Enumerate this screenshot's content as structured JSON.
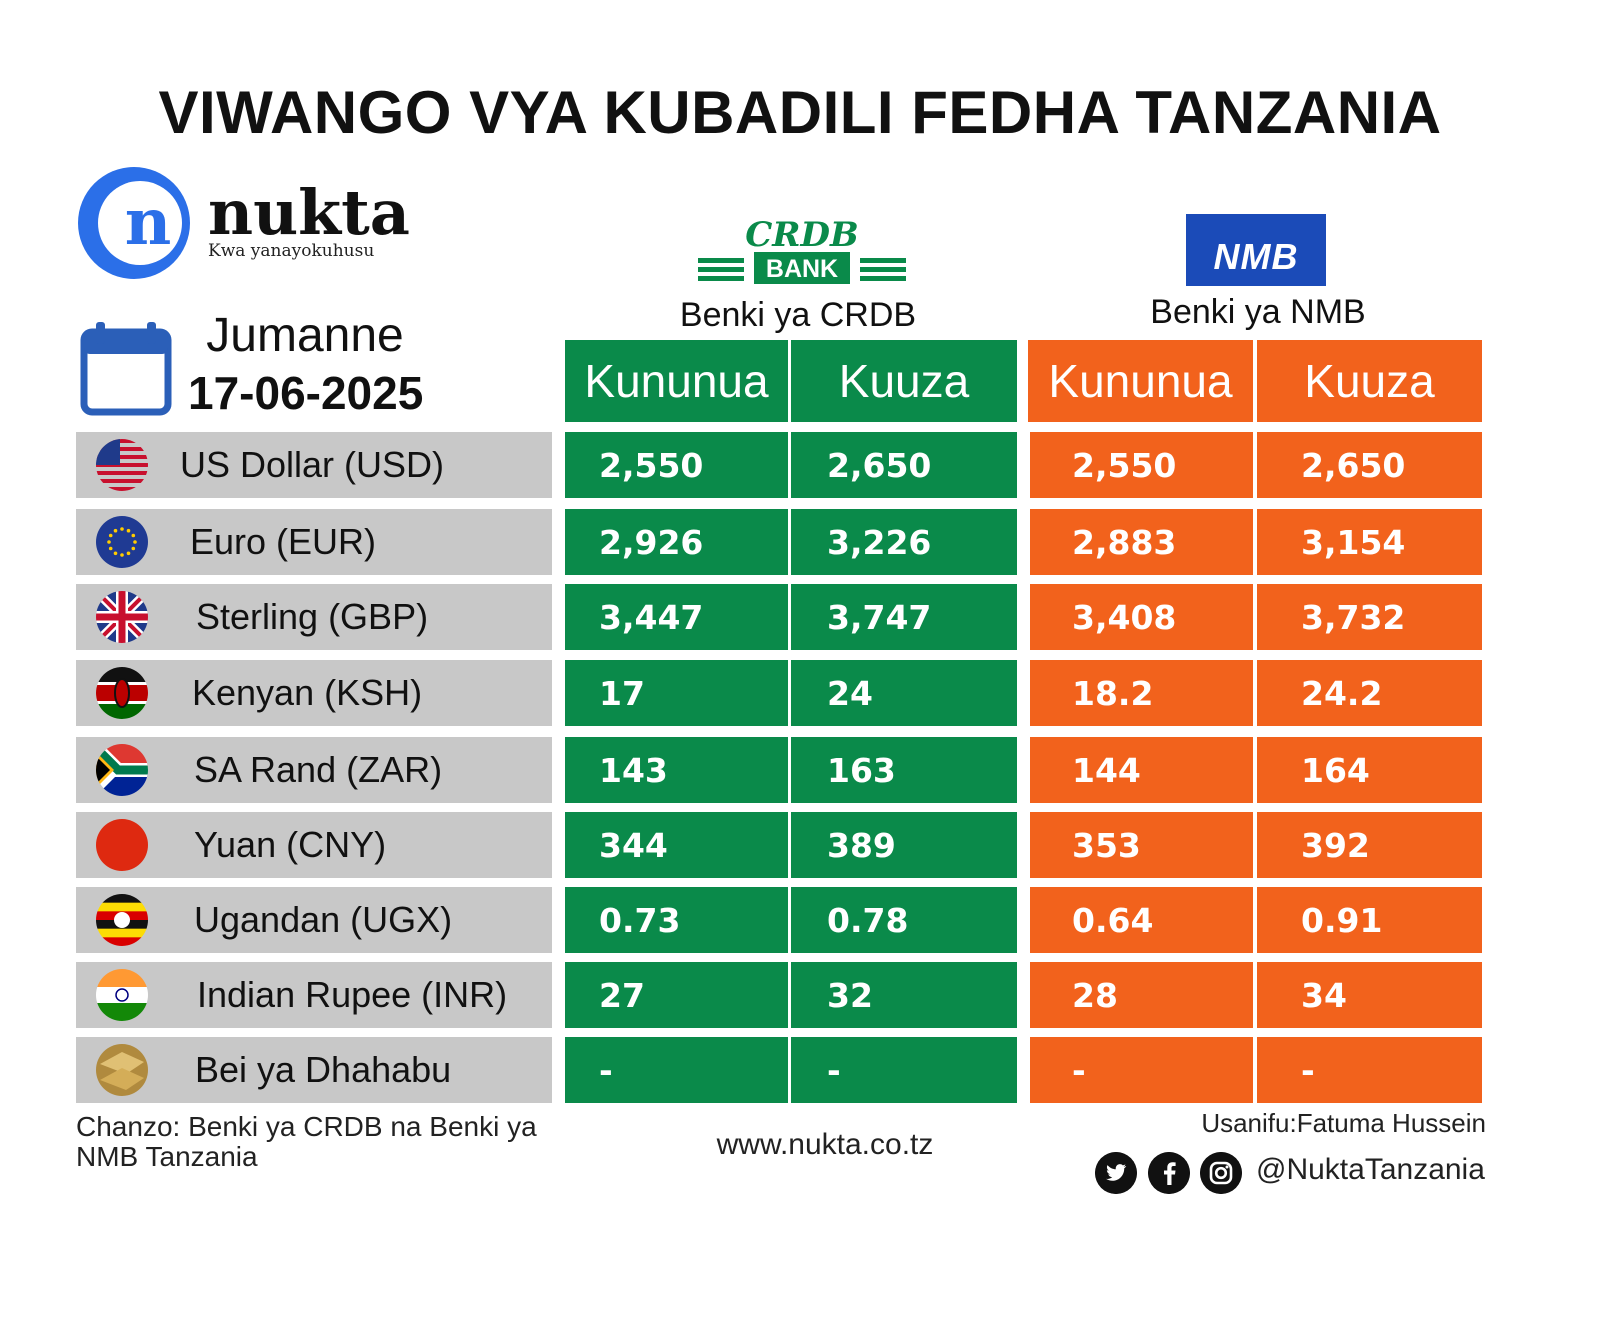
{
  "title": "VIWANGO VYA KUBADILI FEDHA TANZANIA",
  "brand": {
    "name": "nukta",
    "tagline": "Kwa yanayokuhusu",
    "logo_letter": "n"
  },
  "date": {
    "day": "Jumanne",
    "value": "17-06-2025"
  },
  "banks": {
    "crdb": {
      "logo_top": "CRDB",
      "logo_bottom": "BANK",
      "name": "Benki ya CRDB",
      "buy": "Kununua",
      "sell": "Kuuza",
      "color": "#0a8a4a"
    },
    "nmb": {
      "logo": "NMB",
      "name": "Benki ya NMB",
      "buy": "Kununua",
      "sell": "Kuuza",
      "color": "#f2621c"
    }
  },
  "rows": [
    {
      "flag": "usa-flag-icon",
      "label": "US Dollar (USD)",
      "crdb_buy": "2,550",
      "crdb_sell": "2,650",
      "nmb_buy": "2,550",
      "nmb_sell": "2,650"
    },
    {
      "flag": "eu-flag-icon",
      "label": "Euro (EUR)",
      "crdb_buy": "2,926",
      "crdb_sell": "3,226",
      "nmb_buy": "2,883",
      "nmb_sell": "3,154"
    },
    {
      "flag": "uk-flag-icon",
      "label": "Sterling (GBP)",
      "crdb_buy": "3,447",
      "crdb_sell": "3,747",
      "nmb_buy": "3,408",
      "nmb_sell": "3,732"
    },
    {
      "flag": "kenya-flag-icon",
      "label": "Kenyan (KSH)",
      "crdb_buy": "17",
      "crdb_sell": "24",
      "nmb_buy": "18.2",
      "nmb_sell": "24.2"
    },
    {
      "flag": "south-africa-flag-icon",
      "label": "SA Rand (ZAR)",
      "crdb_buy": "143",
      "crdb_sell": "163",
      "nmb_buy": "144",
      "nmb_sell": "164"
    },
    {
      "flag": "china-flag-icon",
      "label": "Yuan (CNY)",
      "crdb_buy": "344",
      "crdb_sell": "389",
      "nmb_buy": "353",
      "nmb_sell": "392"
    },
    {
      "flag": "uganda-flag-icon",
      "label": "Ugandan (UGX)",
      "crdb_buy": "0.73",
      "crdb_sell": "0.78",
      "nmb_buy": "0.64",
      "nmb_sell": "0.91"
    },
    {
      "flag": "india-flag-icon",
      "label": "Indian Rupee (INR)",
      "crdb_buy": "27",
      "crdb_sell": "32",
      "nmb_buy": "28",
      "nmb_sell": "34"
    },
    {
      "flag": "gold-icon",
      "label": "Bei ya Dhahabu",
      "crdb_buy": "-",
      "crdb_sell": "-",
      "nmb_buy": "-",
      "nmb_sell": "-"
    }
  ],
  "footer": {
    "source": "Chanzo: Benki ya CRDB na Benki ya NMB Tanzania",
    "url": "www.nukta.co.tz",
    "credit": "Usanifu:Fatuma Hussein",
    "handle": "@NuktaTanzania"
  }
}
